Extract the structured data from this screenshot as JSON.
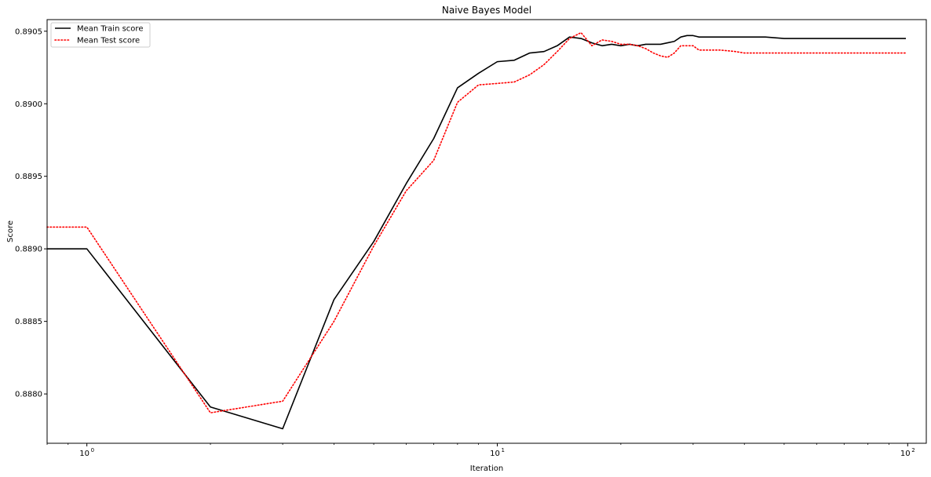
{
  "chart_data": {
    "type": "line",
    "title": "Naive Bayes Model",
    "xlabel": "Iteration",
    "ylabel": "Score",
    "xscale": "log",
    "xlim": [
      0.8,
      111
    ],
    "ylim": [
      0.88766,
      0.89058
    ],
    "x_ticks": [
      1,
      10,
      100
    ],
    "x_tick_labels": [
      "10",
      "10",
      "10"
    ],
    "x_tick_exponents": [
      "0",
      "1",
      "2"
    ],
    "y_ticks": [
      0.888,
      0.8885,
      0.889,
      0.8895,
      0.89,
      0.8905
    ],
    "y_tick_labels": [
      "0.8880",
      "0.8885",
      "0.8890",
      "0.8895",
      "0.8900",
      "0.8905"
    ],
    "grid": false,
    "legend_position": "top-left",
    "series": [
      {
        "name": "Mean Train score",
        "color": "#000000",
        "style": "solid",
        "points": [
          [
            0.8,
            0.889
          ],
          [
            1,
            0.889
          ],
          [
            2,
            0.88791
          ],
          [
            3,
            0.88776
          ],
          [
            4,
            0.88865
          ],
          [
            5,
            0.88905
          ],
          [
            6,
            0.88945
          ],
          [
            7,
            0.88976
          ],
          [
            8,
            0.89011
          ],
          [
            9,
            0.89021
          ],
          [
            10,
            0.89029
          ],
          [
            11,
            0.8903
          ],
          [
            12,
            0.89035
          ],
          [
            13,
            0.89036
          ],
          [
            14,
            0.8904
          ],
          [
            15,
            0.89046
          ],
          [
            16,
            0.89045
          ],
          [
            17,
            0.89042
          ],
          [
            18,
            0.8904
          ],
          [
            19,
            0.89041
          ],
          [
            20,
            0.8904
          ],
          [
            21,
            0.89041
          ],
          [
            22,
            0.8904
          ],
          [
            23,
            0.89041
          ],
          [
            24,
            0.89041
          ],
          [
            25,
            0.89041
          ],
          [
            26,
            0.89042
          ],
          [
            27,
            0.89043
          ],
          [
            28,
            0.89046
          ],
          [
            29,
            0.89047
          ],
          [
            30,
            0.89047
          ],
          [
            31,
            0.89046
          ],
          [
            32,
            0.89046
          ],
          [
            35,
            0.89046
          ],
          [
            40,
            0.89046
          ],
          [
            45,
            0.89046
          ],
          [
            50,
            0.89045
          ],
          [
            60,
            0.89045
          ],
          [
            70,
            0.89045
          ],
          [
            80,
            0.89045
          ],
          [
            90,
            0.89045
          ],
          [
            99,
            0.89045
          ]
        ]
      },
      {
        "name": "Mean Test score",
        "color": "#ff0000",
        "style": "dotted",
        "points": [
          [
            0.8,
            0.88915
          ],
          [
            1,
            0.88915
          ],
          [
            2,
            0.88787
          ],
          [
            3,
            0.88795
          ],
          [
            4,
            0.8885
          ],
          [
            5,
            0.88902
          ],
          [
            6,
            0.8894
          ],
          [
            7,
            0.88961
          ],
          [
            8,
            0.89001
          ],
          [
            9,
            0.89013
          ],
          [
            10,
            0.89014
          ],
          [
            11,
            0.89015
          ],
          [
            12,
            0.8902
          ],
          [
            13,
            0.89027
          ],
          [
            14,
            0.89036
          ],
          [
            15,
            0.89045
          ],
          [
            16,
            0.89049
          ],
          [
            17,
            0.8904
          ],
          [
            18,
            0.89044
          ],
          [
            19,
            0.89043
          ],
          [
            20,
            0.89041
          ],
          [
            21,
            0.89041
          ],
          [
            22,
            0.8904
          ],
          [
            23,
            0.89038
          ],
          [
            24,
            0.89035
          ],
          [
            25,
            0.89033
          ],
          [
            26,
            0.89032
          ],
          [
            27,
            0.89035
          ],
          [
            28,
            0.8904
          ],
          [
            29,
            0.8904
          ],
          [
            30,
            0.8904
          ],
          [
            31,
            0.89037
          ],
          [
            32,
            0.89037
          ],
          [
            35,
            0.89037
          ],
          [
            38,
            0.89036
          ],
          [
            40,
            0.89035
          ],
          [
            50,
            0.89035
          ],
          [
            60,
            0.89035
          ],
          [
            70,
            0.89035
          ],
          [
            80,
            0.89035
          ],
          [
            90,
            0.89035
          ],
          [
            99,
            0.89035
          ]
        ]
      }
    ]
  }
}
